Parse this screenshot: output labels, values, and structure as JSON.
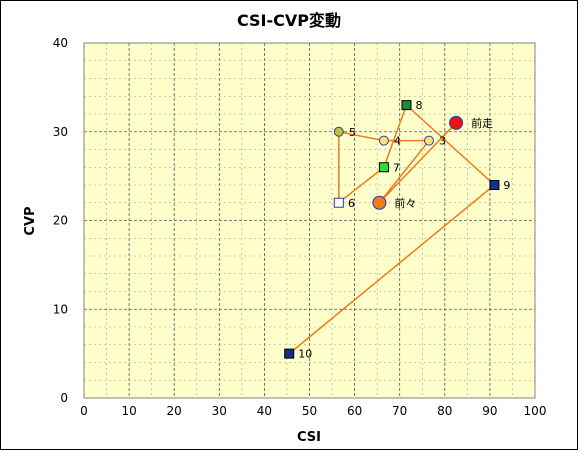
{
  "chart_data": {
    "type": "scatter",
    "title": "CSI-CVP変動",
    "xlabel": "CSI",
    "ylabel": "CVP",
    "xlim": [
      0,
      100
    ],
    "ylim": [
      0,
      40
    ],
    "xticks": [
      0,
      10,
      20,
      30,
      40,
      50,
      60,
      70,
      80,
      90,
      100
    ],
    "yticks": [
      0,
      10,
      20,
      30,
      40
    ],
    "grid": true,
    "background_color": "#ffffcc",
    "line_color": "#f07a1c",
    "path_order": [
      "10",
      "9",
      "8",
      "7",
      "6",
      "5",
      "4",
      "3",
      "前々",
      "前走"
    ],
    "points": [
      {
        "label": "10",
        "x": 45.5,
        "y": 5,
        "marker": "square",
        "fill": "#10308c",
        "stroke": "#000000"
      },
      {
        "label": "9",
        "x": 91,
        "y": 24,
        "marker": "square",
        "fill": "#10308c",
        "stroke": "#000000"
      },
      {
        "label": "8",
        "x": 71.5,
        "y": 33,
        "marker": "square",
        "fill": "#1f8a3a",
        "stroke": "#000000"
      },
      {
        "label": "7",
        "x": 66.5,
        "y": 26,
        "marker": "square",
        "fill": "#33dd33",
        "stroke": "#000000"
      },
      {
        "label": "6",
        "x": 56.5,
        "y": 22,
        "marker": "square",
        "fill": "#ffffff",
        "stroke": "#1f3fa6"
      },
      {
        "label": "5",
        "x": 56.5,
        "y": 30,
        "marker": "circle",
        "fill": "#c2c232",
        "stroke": "#1f3fa6"
      },
      {
        "label": "4",
        "x": 66.5,
        "y": 29,
        "marker": "circle",
        "fill": "#ffe07a",
        "stroke": "#1f3fa6"
      },
      {
        "label": "3",
        "x": 76.5,
        "y": 29,
        "marker": "circle",
        "fill": "#ffe07a",
        "stroke": "#1f3fa6"
      },
      {
        "label": "前々",
        "x": 65.5,
        "y": 22,
        "marker": "circle-lg",
        "fill": "#f07a1c",
        "stroke": "#1f3fa6"
      },
      {
        "label": "前走",
        "x": 82.5,
        "y": 31,
        "marker": "circle-lg",
        "fill": "#ee1111",
        "stroke": "#1f3fa6"
      }
    ]
  }
}
